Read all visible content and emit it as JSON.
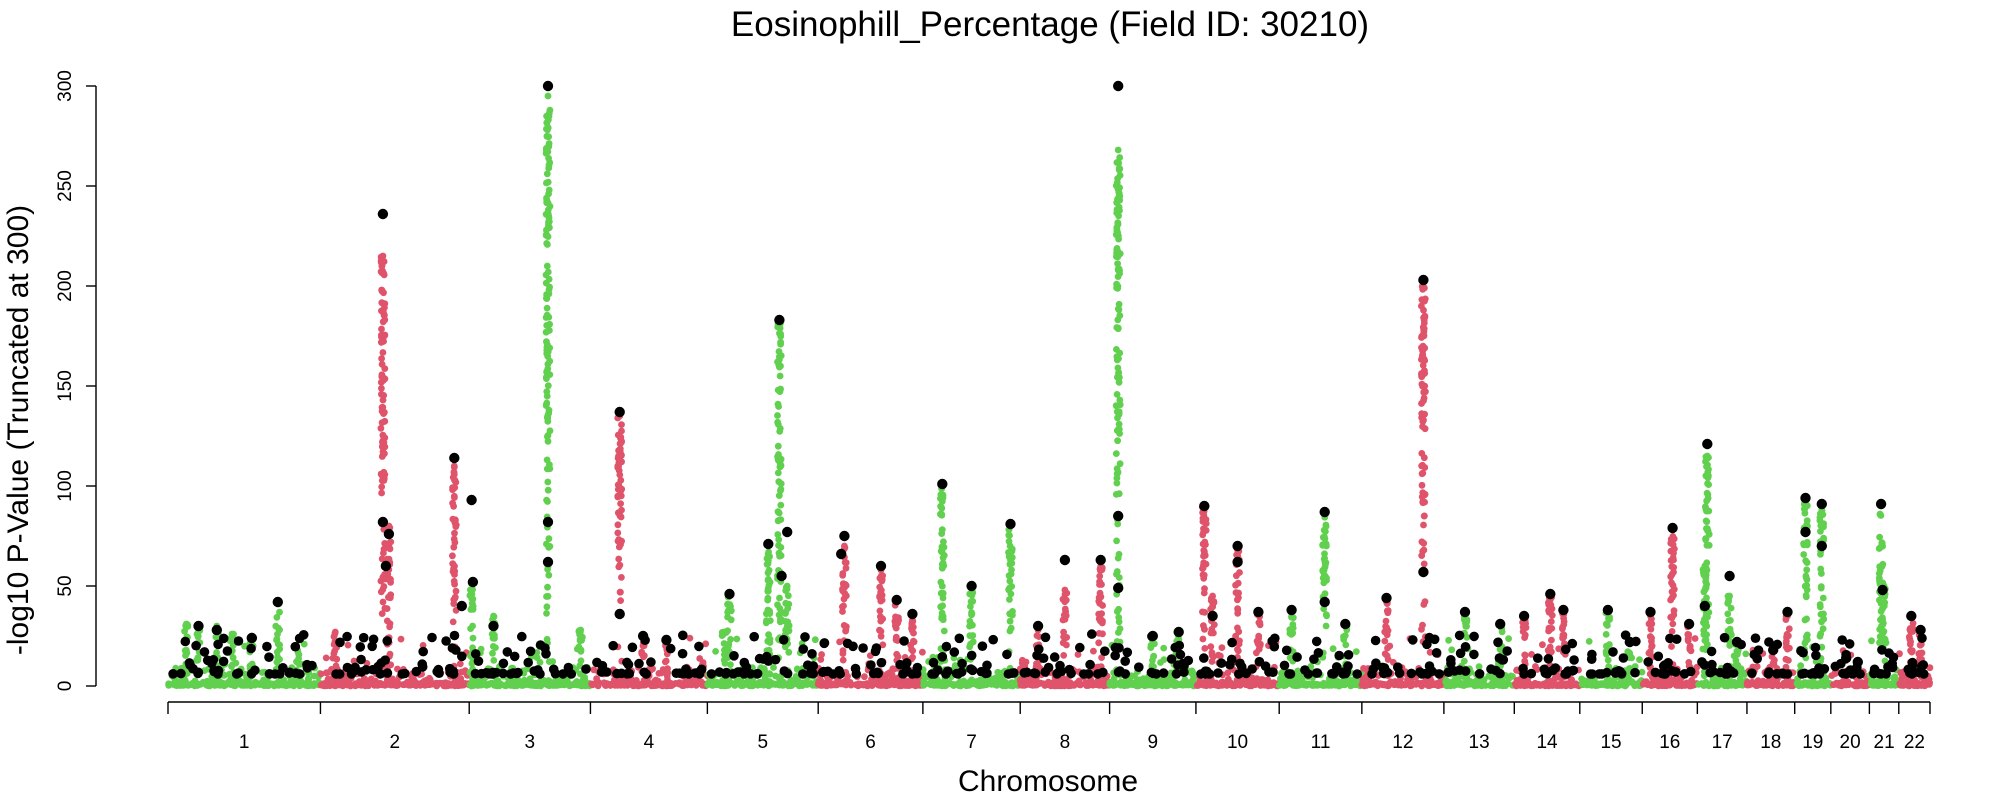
{
  "chart_data": {
    "type": "scatter",
    "subtype": "manhattan",
    "title": "Eosinophill_Percentage (Field ID: 30210)",
    "xlabel": "Chromosome",
    "ylabel": "-log10 P-Value (Truncated at 300)",
    "ylim": [
      0,
      300
    ],
    "yticks": [
      0,
      50,
      100,
      150,
      200,
      250,
      300
    ],
    "colors": {
      "odd": "#61D04F",
      "even": "#DF536B",
      "highlight": "#000000"
    },
    "chromosomes": [
      {
        "label": "1",
        "length": 249,
        "peaks": [
          [
            0.12,
            31
          ],
          [
            0.2,
            28
          ],
          [
            0.32,
            30
          ],
          [
            0.42,
            26
          ],
          [
            0.55,
            25
          ],
          [
            0.72,
            42
          ],
          [
            0.85,
            18
          ]
        ],
        "top_hits": [
          [
            0.2,
            30
          ],
          [
            0.32,
            28
          ],
          [
            0.55,
            24
          ],
          [
            0.72,
            42
          ]
        ]
      },
      {
        "label": "2",
        "length": 243,
        "peaks": [
          [
            0.1,
            27
          ],
          [
            0.42,
            215
          ],
          [
            0.46,
            80
          ],
          [
            0.9,
            110
          ]
        ],
        "top_hits": [
          [
            0.42,
            236
          ],
          [
            0.42,
            82
          ],
          [
            0.44,
            60
          ],
          [
            0.46,
            76
          ],
          [
            0.9,
            114
          ],
          [
            0.95,
            40
          ]
        ]
      },
      {
        "label": "3",
        "length": 198,
        "peaks": [
          [
            0.02,
            52
          ],
          [
            0.2,
            35
          ],
          [
            0.65,
            295
          ],
          [
            0.92,
            28
          ]
        ],
        "top_hits": [
          [
            0.02,
            93
          ],
          [
            0.03,
            52
          ],
          [
            0.2,
            30
          ],
          [
            0.65,
            300
          ],
          [
            0.65,
            82
          ],
          [
            0.65,
            62
          ]
        ]
      },
      {
        "label": "4",
        "length": 191,
        "peaks": [
          [
            0.25,
            135
          ],
          [
            0.45,
            25
          ],
          [
            0.65,
            23
          ]
        ],
        "top_hits": [
          [
            0.25,
            137
          ],
          [
            0.25,
            36
          ],
          [
            0.45,
            25
          ],
          [
            0.65,
            23
          ]
        ]
      },
      {
        "label": "5",
        "length": 181,
        "peaks": [
          [
            0.15,
            27
          ],
          [
            0.2,
            45
          ],
          [
            0.55,
            70
          ],
          [
            0.65,
            182
          ],
          [
            0.72,
            50
          ]
        ],
        "top_hits": [
          [
            0.2,
            46
          ],
          [
            0.55,
            71
          ],
          [
            0.65,
            183
          ],
          [
            0.67,
            55
          ],
          [
            0.72,
            77
          ]
        ]
      },
      {
        "label": "6",
        "length": 171,
        "peaks": [
          [
            0.25,
            70
          ],
          [
            0.6,
            58
          ],
          [
            0.75,
            42
          ],
          [
            0.9,
            33
          ]
        ],
        "top_hits": [
          [
            0.22,
            66
          ],
          [
            0.25,
            75
          ],
          [
            0.6,
            60
          ],
          [
            0.75,
            43
          ],
          [
            0.9,
            36
          ]
        ]
      },
      {
        "label": "7",
        "length": 159,
        "peaks": [
          [
            0.2,
            100
          ],
          [
            0.5,
            50
          ],
          [
            0.9,
            80
          ]
        ],
        "top_hits": [
          [
            0.2,
            101
          ],
          [
            0.5,
            50
          ],
          [
            0.9,
            81
          ]
        ]
      },
      {
        "label": "8",
        "length": 146,
        "peaks": [
          [
            0.2,
            28
          ],
          [
            0.5,
            48
          ],
          [
            0.9,
            60
          ]
        ],
        "top_hits": [
          [
            0.2,
            30
          ],
          [
            0.5,
            63
          ],
          [
            0.9,
            63
          ]
        ]
      },
      {
        "label": "9",
        "length": 141,
        "peaks": [
          [
            0.1,
            268
          ],
          [
            0.5,
            25
          ],
          [
            0.8,
            27
          ]
        ],
        "top_hits": [
          [
            0.1,
            300
          ],
          [
            0.1,
            85
          ],
          [
            0.1,
            49
          ],
          [
            0.5,
            25
          ],
          [
            0.8,
            27
          ]
        ]
      },
      {
        "label": "10",
        "length": 136,
        "peaks": [
          [
            0.1,
            90
          ],
          [
            0.2,
            45
          ],
          [
            0.5,
            68
          ],
          [
            0.75,
            36
          ]
        ],
        "top_hits": [
          [
            0.1,
            90
          ],
          [
            0.2,
            35
          ],
          [
            0.5,
            70
          ],
          [
            0.5,
            62
          ],
          [
            0.75,
            37
          ]
        ]
      },
      {
        "label": "11",
        "length": 135,
        "peaks": [
          [
            0.15,
            35
          ],
          [
            0.55,
            85
          ],
          [
            0.8,
            30
          ]
        ],
        "top_hits": [
          [
            0.15,
            38
          ],
          [
            0.55,
            87
          ],
          [
            0.55,
            42
          ],
          [
            0.8,
            31
          ]
        ]
      },
      {
        "label": "12",
        "length": 134,
        "peaks": [
          [
            0.3,
            42
          ],
          [
            0.75,
            200
          ]
        ],
        "top_hits": [
          [
            0.3,
            44
          ],
          [
            0.75,
            203
          ],
          [
            0.75,
            57
          ]
        ]
      },
      {
        "label": "13",
        "length": 115,
        "peaks": [
          [
            0.3,
            35
          ],
          [
            0.8,
            30
          ]
        ],
        "top_hits": [
          [
            0.3,
            37
          ],
          [
            0.8,
            31
          ]
        ]
      },
      {
        "label": "14",
        "length": 107,
        "peaks": [
          [
            0.15,
            33
          ],
          [
            0.55,
            45
          ],
          [
            0.75,
            38
          ]
        ],
        "top_hits": [
          [
            0.15,
            35
          ],
          [
            0.55,
            46
          ],
          [
            0.75,
            38
          ]
        ]
      },
      {
        "label": "15",
        "length": 102,
        "peaks": [
          [
            0.45,
            37
          ],
          [
            0.8,
            22
          ]
        ],
        "top_hits": [
          [
            0.45,
            38
          ],
          [
            0.8,
            22
          ]
        ]
      },
      {
        "label": "16",
        "length": 90,
        "peaks": [
          [
            0.15,
            35
          ],
          [
            0.55,
            78
          ],
          [
            0.85,
            30
          ]
        ],
        "top_hits": [
          [
            0.15,
            37
          ],
          [
            0.55,
            79
          ],
          [
            0.85,
            31
          ]
        ]
      },
      {
        "label": "17",
        "length": 81,
        "peaks": [
          [
            0.15,
            60
          ],
          [
            0.2,
            115
          ],
          [
            0.65,
            45
          ],
          [
            0.8,
            22
          ]
        ],
        "top_hits": [
          [
            0.15,
            40
          ],
          [
            0.2,
            121
          ],
          [
            0.65,
            55
          ],
          [
            0.8,
            22
          ]
        ]
      },
      {
        "label": "18",
        "length": 78,
        "peaks": [
          [
            0.55,
            18
          ],
          [
            0.85,
            35
          ]
        ],
        "top_hits": [
          [
            0.55,
            18
          ],
          [
            0.85,
            37
          ]
        ]
      },
      {
        "label": "19",
        "length": 59,
        "peaks": [
          [
            0.3,
            92
          ],
          [
            0.75,
            88
          ]
        ],
        "top_hits": [
          [
            0.3,
            94
          ],
          [
            0.3,
            77
          ],
          [
            0.75,
            91
          ],
          [
            0.75,
            70
          ]
        ]
      },
      {
        "label": "20",
        "length": 63,
        "peaks": [
          [
            0.4,
            14
          ],
          [
            0.7,
            12
          ]
        ],
        "top_hits": [
          [
            0.4,
            14
          ],
          [
            0.7,
            12
          ]
        ]
      },
      {
        "label": "21",
        "length": 48,
        "peaks": [
          [
            0.4,
            90
          ],
          [
            0.5,
            50
          ]
        ],
        "top_hits": [
          [
            0.4,
            91
          ],
          [
            0.45,
            48
          ]
        ]
      },
      {
        "label": "22",
        "length": 51,
        "peaks": [
          [
            0.4,
            35
          ],
          [
            0.7,
            28
          ]
        ],
        "top_hits": [
          [
            0.4,
            35
          ],
          [
            0.7,
            28
          ]
        ]
      }
    ]
  }
}
